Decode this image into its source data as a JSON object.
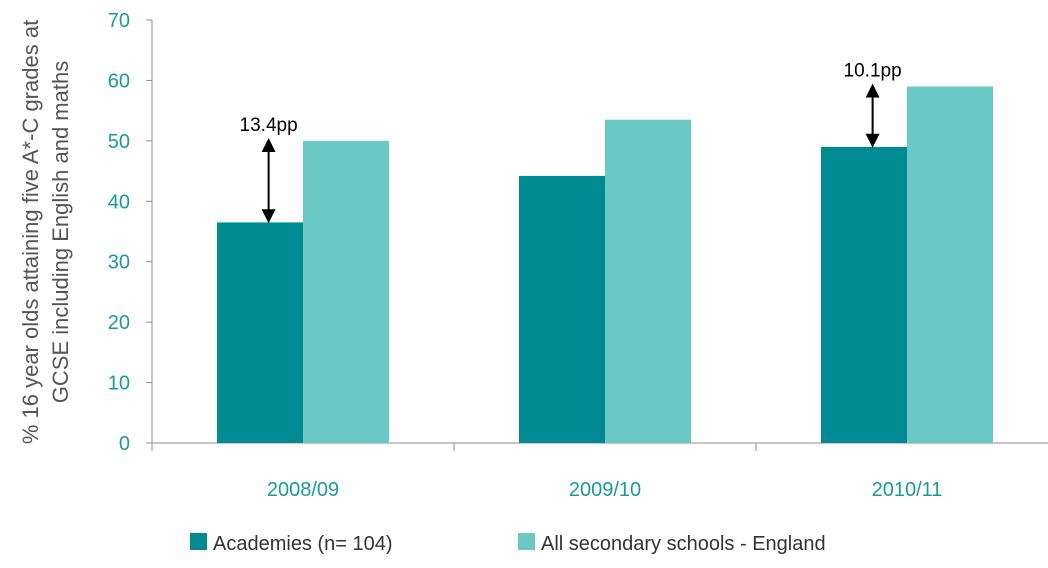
{
  "chart_data": {
    "type": "bar",
    "title": "",
    "xlabel": "",
    "ylabel_lines": [
      "% 16 year olds attaining five A*-C grades at",
      "GCSE including English and maths"
    ],
    "ylim": [
      0,
      70
    ],
    "yticks": [
      "0",
      "10",
      "20",
      "30",
      "40",
      "50",
      "60",
      "70"
    ],
    "grid": false,
    "legend_position": "bottom",
    "categories": [
      "2008/09",
      "2009/10",
      "2010/11"
    ],
    "series": [
      {
        "name": "Academies (n= 104)",
        "values": [
          36.5,
          44.2,
          49.0
        ],
        "color": "#008b93"
      },
      {
        "name": "All secondary schools - England",
        "values": [
          50.0,
          53.5,
          59.0
        ],
        "color": "#6ac8c5"
      }
    ],
    "annotations": [
      {
        "category_index": 0,
        "text": "13.4pp"
      },
      {
        "category_index": 2,
        "text": "10.1pp"
      }
    ]
  }
}
